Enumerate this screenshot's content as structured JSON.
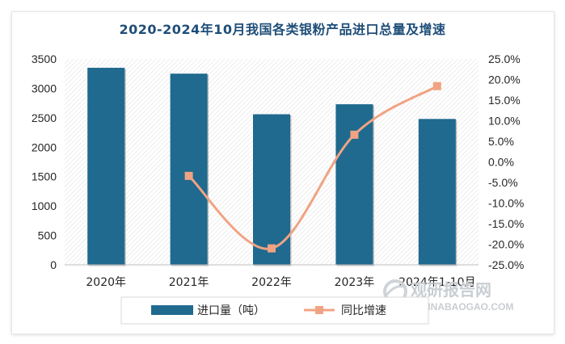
{
  "title": "2020-2024年10月我国各类银粉产品进口总量及增速",
  "chart_data": {
    "type": "bar",
    "categories": [
      "2020年",
      "2021年",
      "2022年",
      "2023年",
      "2024年1-10月"
    ],
    "series": [
      {
        "name": "进口量（吨）",
        "type": "bar",
        "axis": "left",
        "values": [
          3350,
          3250,
          2560,
          2730,
          2480
        ]
      },
      {
        "name": "同比增速",
        "type": "line",
        "axis": "right",
        "values": [
          null,
          -3.4,
          -21.0,
          6.6,
          18.4
        ]
      }
    ],
    "ylim": [
      0,
      3500
    ],
    "yticks": [
      0,
      500,
      1000,
      1500,
      2000,
      2500,
      3000,
      3500
    ],
    "y2lim": [
      -25,
      25
    ],
    "y2ticks": [
      "-25.0%",
      "-20.0%",
      "-15.0%",
      "-10.0%",
      "-5.0%",
      "0.0%",
      "5.0%",
      "10.0%",
      "15.0%",
      "20.0%",
      "25.0%"
    ],
    "colors": {
      "bar": "#1f6a8e",
      "line": "#f0a383",
      "title": "#1f4e79"
    },
    "legend_position": "bottom",
    "grid": false
  },
  "watermark": {
    "text": "观研报告网",
    "sub": "CHINABAOGAO.COM"
  }
}
